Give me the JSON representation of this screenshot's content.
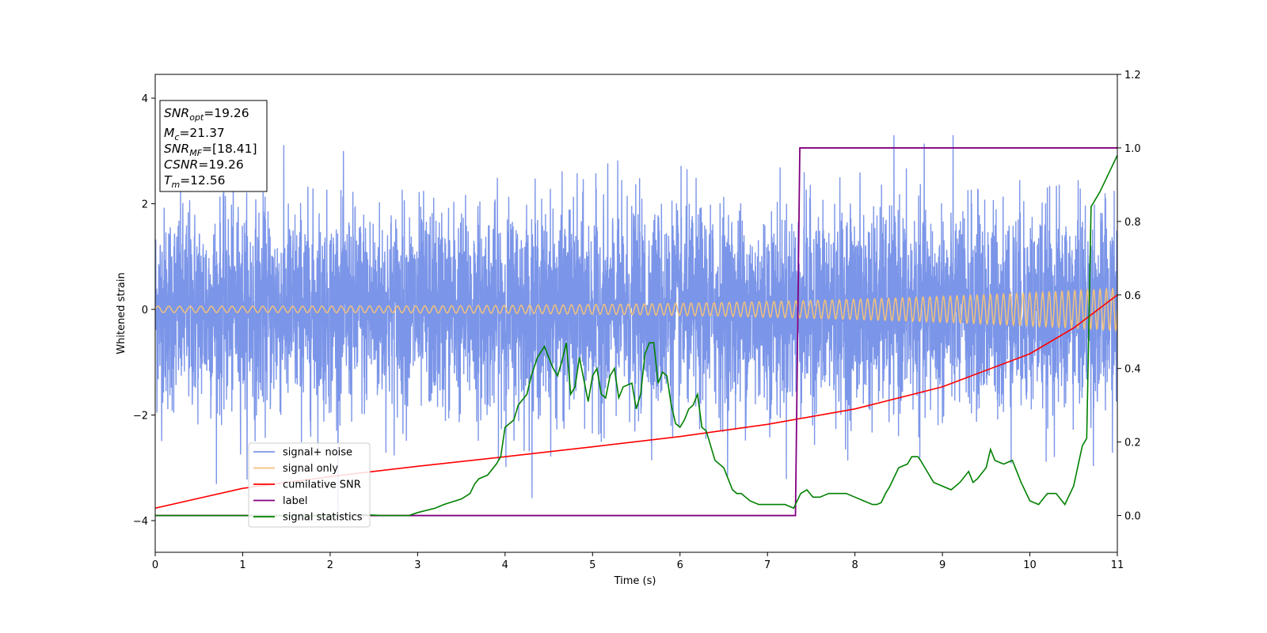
{
  "chart_data": {
    "type": "line",
    "title": "",
    "xlabel": "Time (s)",
    "ylabel": "Whitened strain",
    "y2label": "",
    "xlim": [
      0,
      11
    ],
    "ylim": [
      -4.6,
      4.45
    ],
    "y2lim": [
      -0.1,
      1.2
    ],
    "x_ticks": [
      "0",
      "1",
      "2",
      "3",
      "4",
      "5",
      "6",
      "7",
      "8",
      "9",
      "10",
      "11"
    ],
    "y_ticks": [
      "−4",
      "−2",
      "0",
      "2",
      "4"
    ],
    "y2_ticks": [
      "0.0",
      "0.2",
      "0.4",
      "0.6",
      "0.8",
      "1.0",
      "1.2"
    ],
    "grid": false,
    "legend_position": "lower-left",
    "colors": {
      "signal_noise": "#7b95e8",
      "signal_only": "#f2c27a",
      "cumulative_snr": "#ff0000",
      "label": "#800080",
      "signal_statistics": "#008000"
    },
    "info_box": [
      {
        "base": "SNR",
        "sub": "opt",
        "rest": "=19.26"
      },
      {
        "base": "M",
        "sub": "c",
        "rest": "=21.37"
      },
      {
        "base": "SNR",
        "sub": "MF",
        "rest": "=[18.41]"
      },
      {
        "base": "CSNR",
        "sub": "",
        "rest": "=19.26"
      },
      {
        "base": "T",
        "sub": "m",
        "rest": "=12.56"
      }
    ],
    "series": [
      {
        "name": "signal+ noise",
        "axis": "left",
        "note": "noisy whitened strain, roughly ±2 with peaks to ±3.3",
        "amplitude_std": 0.95
      },
      {
        "name": "signal only",
        "axis": "left",
        "note": "chirp, amplitude rising from 0.06 to 0.4",
        "amp_start": 0.06,
        "amp_end": 0.4,
        "cycles": 125
      },
      {
        "name": "cumilative SNR",
        "axis": "right",
        "x": [
          0,
          1,
          2,
          3,
          4,
          5,
          6,
          7,
          8,
          9,
          10,
          10.5,
          11
        ],
        "y": [
          0.02,
          0.074,
          0.106,
          0.134,
          0.16,
          0.187,
          0.215,
          0.248,
          0.29,
          0.35,
          0.44,
          0.51,
          0.6
        ]
      },
      {
        "name": "label",
        "axis": "right",
        "x": [
          0,
          7.32,
          7.37,
          11
        ],
        "y": [
          0,
          0,
          1,
          1
        ]
      },
      {
        "name": "signal statistics",
        "axis": "right",
        "x": [
          0,
          0.5,
          1,
          1.5,
          2,
          2.4,
          2.6,
          2.9,
          3.0,
          3.2,
          3.3,
          3.5,
          3.6,
          3.65,
          3.7,
          3.8,
          3.9,
          3.95,
          4.0,
          4.05,
          4.1,
          4.15,
          4.25,
          4.3,
          4.37,
          4.45,
          4.55,
          4.6,
          4.65,
          4.7,
          4.75,
          4.8,
          4.85,
          4.9,
          4.95,
          5.0,
          5.05,
          5.1,
          5.15,
          5.2,
          5.25,
          5.3,
          5.35,
          5.45,
          5.5,
          5.55,
          5.6,
          5.65,
          5.7,
          5.75,
          5.8,
          5.85,
          5.9,
          5.95,
          6.0,
          6.05,
          6.1,
          6.15,
          6.2,
          6.25,
          6.3,
          6.4,
          6.5,
          6.55,
          6.6,
          6.65,
          6.7,
          6.8,
          6.9,
          7.0,
          7.1,
          7.2,
          7.3,
          7.38,
          7.45,
          7.52,
          7.6,
          7.7,
          7.8,
          7.9,
          8.0,
          8.1,
          8.2,
          8.25,
          8.3,
          8.35,
          8.4,
          8.5,
          8.6,
          8.65,
          8.72,
          8.75,
          8.8,
          8.9,
          9.0,
          9.1,
          9.2,
          9.3,
          9.35,
          9.4,
          9.5,
          9.55,
          9.6,
          9.7,
          9.8,
          9.9,
          10.0,
          10.1,
          10.2,
          10.3,
          10.4,
          10.5,
          10.6,
          10.65,
          10.7,
          10.8,
          10.9,
          11.0
        ],
        "y": [
          0.0,
          0.0,
          0.0,
          0.0,
          0.0,
          0.002,
          0.0,
          0.0,
          0.008,
          0.02,
          0.03,
          0.045,
          0.06,
          0.085,
          0.1,
          0.11,
          0.14,
          0.16,
          0.24,
          0.25,
          0.26,
          0.3,
          0.33,
          0.38,
          0.43,
          0.46,
          0.4,
          0.38,
          0.42,
          0.47,
          0.33,
          0.35,
          0.43,
          0.37,
          0.31,
          0.38,
          0.4,
          0.33,
          0.32,
          0.38,
          0.4,
          0.32,
          0.35,
          0.36,
          0.29,
          0.33,
          0.44,
          0.47,
          0.47,
          0.36,
          0.39,
          0.38,
          0.3,
          0.25,
          0.24,
          0.26,
          0.29,
          0.3,
          0.33,
          0.24,
          0.23,
          0.15,
          0.13,
          0.1,
          0.07,
          0.06,
          0.06,
          0.04,
          0.03,
          0.03,
          0.03,
          0.03,
          0.02,
          0.06,
          0.07,
          0.05,
          0.05,
          0.06,
          0.06,
          0.06,
          0.05,
          0.04,
          0.03,
          0.03,
          0.035,
          0.06,
          0.08,
          0.13,
          0.14,
          0.16,
          0.16,
          0.15,
          0.13,
          0.09,
          0.08,
          0.07,
          0.09,
          0.12,
          0.09,
          0.1,
          0.13,
          0.18,
          0.15,
          0.14,
          0.15,
          0.09,
          0.04,
          0.03,
          0.06,
          0.06,
          0.03,
          0.08,
          0.19,
          0.21,
          0.84,
          0.88,
          0.93,
          0.98
        ]
      }
    ]
  }
}
